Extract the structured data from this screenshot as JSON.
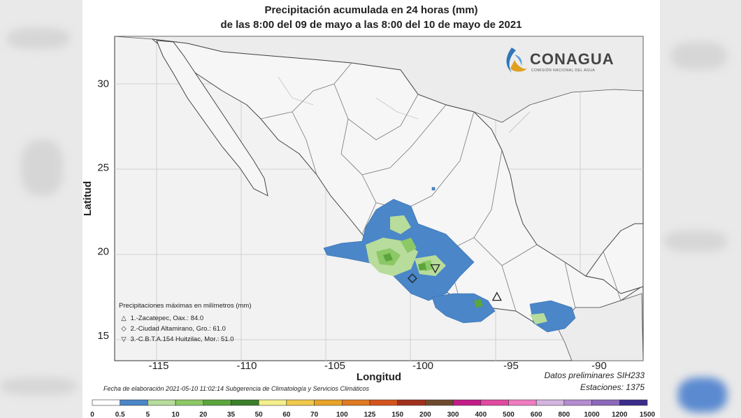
{
  "title_line1": "Precipitación acumulada en 24 horas (mm)",
  "title_line2": "de las 8:00 del 09 de mayo a las 8:00 del 10 de mayo de 2021",
  "logo": {
    "name": "CONAGUA",
    "subtitle": "COMISIÓN NACIONAL DEL AGUA",
    "icon": "water-drop-swirl-icon"
  },
  "axes": {
    "xlabel": "Longitud",
    "ylabel": "Latitud",
    "x_ticks": [
      "-115",
      "-110",
      "-105",
      "-100",
      "-95",
      "-90"
    ],
    "y_ticks": [
      "30",
      "25",
      "20",
      "15"
    ],
    "lon_range": [
      -117.5,
      -87.5
    ],
    "lat_range": [
      13.5,
      32.8
    ]
  },
  "max_precip_legend": {
    "title": "Precipitaciones máximas en milímetros (mm)",
    "items": [
      {
        "symbol": "△",
        "text": "1.-Zacatepec, Oax.: 84.0",
        "lon": -95.8,
        "lat": 17.3
      },
      {
        "symbol": "◇",
        "text": "2.-Ciudad Altamirano, Gro.: 61.0",
        "lon": -100.6,
        "lat": 18.4
      },
      {
        "symbol": "▽",
        "text": "3.-C.B.T.A.154 Huitzilac, Mor.: 51.0",
        "lon": -99.3,
        "lat": 19.0
      }
    ]
  },
  "footer": {
    "elaboration": "Fecha de elaboración 2021-05-10 11:02:14 Subgerencia de Climatología y Servicios Climáticos",
    "data_note": "Datos preliminares SIH233",
    "stations": "Estaciones:  1375"
  },
  "colorbar": {
    "labels": [
      "0",
      "0.5",
      "5",
      "10",
      "20",
      "35",
      "50",
      "60",
      "70",
      "100",
      "125",
      "150",
      "200",
      "300",
      "400",
      "500",
      "600",
      "800",
      "1000",
      "1200",
      "1500"
    ],
    "colors": [
      "#ffffff",
      "#4a86c8",
      "#b7dc9b",
      "#8cc866",
      "#5aa63c",
      "#3a7f2a",
      "#f4ef8c",
      "#f0c84a",
      "#e8a428",
      "#e07a20",
      "#d4541c",
      "#a0301c",
      "#6e4a2c",
      "#c21c88",
      "#e04aa0",
      "#f07cc0",
      "#d4b4e0",
      "#b48cd0",
      "#8c68bc",
      "#3a2c8c"
    ]
  }
}
